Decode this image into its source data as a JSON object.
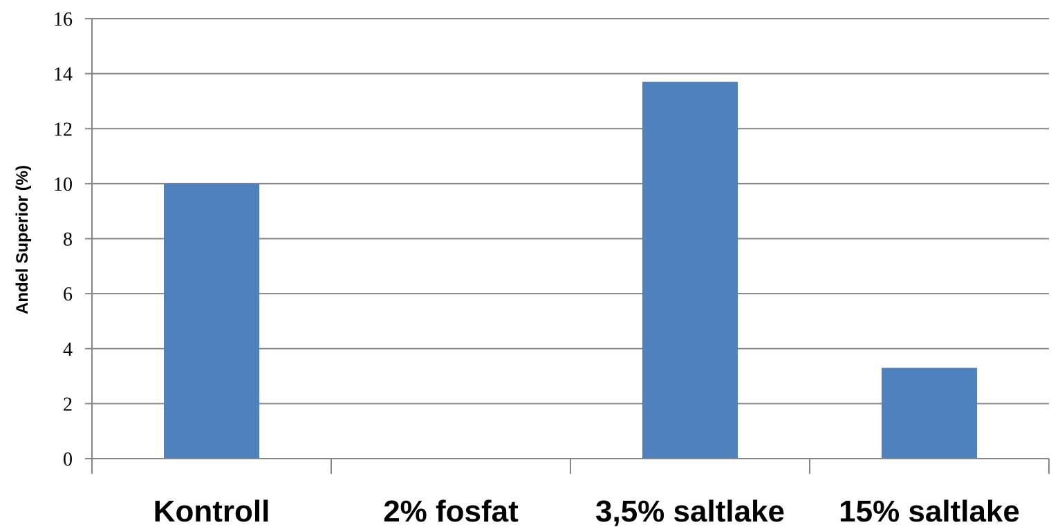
{
  "chart_data": {
    "type": "bar",
    "categories": [
      "Kontroll",
      "2% fosfat",
      "3,5% saltlake",
      "15% saltlake"
    ],
    "values": [
      10.0,
      0,
      13.7,
      3.3
    ],
    "title": "",
    "xlabel": "",
    "ylabel": "Andel Superior (%)",
    "ylim": [
      0,
      16
    ],
    "yticks": [
      "0",
      "2",
      "4",
      "6",
      "8",
      "10",
      "12",
      "14",
      "16"
    ],
    "grid": true,
    "legend": "none",
    "colors": {
      "bar": "#4f81bd",
      "grid": "#868686",
      "axis": "#868686"
    }
  }
}
